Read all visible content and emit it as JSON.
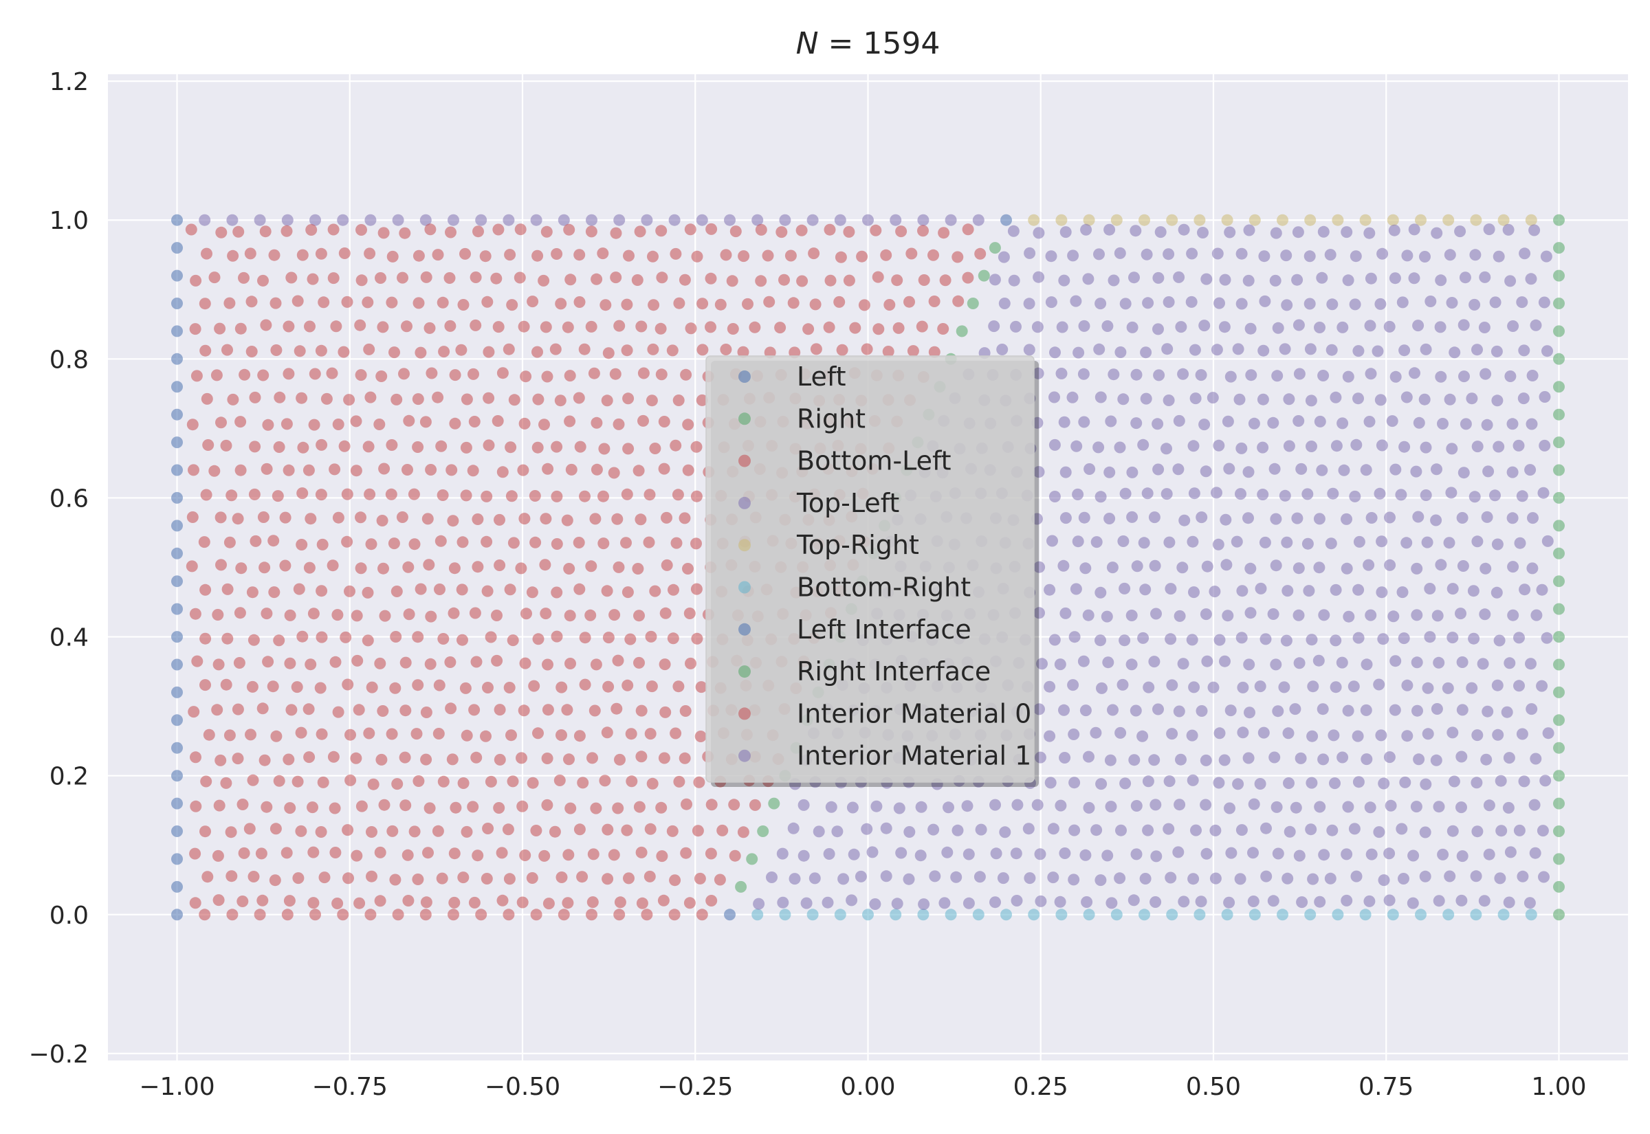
{
  "chart_data": {
    "type": "scatter",
    "title": "N = 1594",
    "xlabel": "",
    "ylabel": "",
    "xlim": [
      -1.1,
      1.1
    ],
    "ylim": [
      -0.21,
      1.21
    ],
    "xticks": [
      "−1.00",
      "−0.75",
      "−0.50",
      "−0.25",
      "0.00",
      "0.25",
      "0.50",
      "0.75",
      "1.00"
    ],
    "xtick_values": [
      -1.0,
      -0.75,
      -0.5,
      -0.25,
      0.0,
      0.25,
      0.5,
      0.75,
      1.0
    ],
    "yticks": [
      "−0.2",
      "0.0",
      "0.2",
      "0.4",
      "0.6",
      "0.8",
      "1.0",
      "1.2"
    ],
    "ytick_values": [
      -0.2,
      0.0,
      0.2,
      0.4,
      0.6,
      0.8,
      1.0,
      1.2
    ],
    "grid": true,
    "legend_position": "center",
    "series": [
      {
        "name": "Left",
        "color": "#4c72b0",
        "shape": "left-boundary: x = -1.0, y from 0.0 to 1.0 step 0.04"
      },
      {
        "name": "Right",
        "color": "#55a868",
        "shape": "right-boundary: x = 1.0, y from 0.0 to 1.0 step 0.04"
      },
      {
        "name": "Bottom-Left",
        "color": "#c44e52",
        "shape": "bottom boundary y = 0.0, x from -0.96 to -0.24"
      },
      {
        "name": "Top-Left",
        "color": "#8172b3",
        "shape": "top boundary y = 1.0, x from -0.96 to 0.16"
      },
      {
        "name": "Top-Right",
        "color": "#ccb974",
        "shape": "top boundary y = 1.0, x from 0.20 to 0.96"
      },
      {
        "name": "Bottom-Right",
        "color": "#64b5cd",
        "shape": "bottom boundary y = 0.0, x from -0.16 to 0.96"
      },
      {
        "name": "Left Interface",
        "color": "#4c72b0",
        "shape": "points (-0.2, 0.0) and (0.2, 1.0)"
      },
      {
        "name": "Right Interface",
        "color": "#55a868",
        "shape": "diagonal interface from (-0.2, 0.0) to (0.2, 1.0)"
      },
      {
        "name": "Interior Material 0",
        "color": "#c44e52",
        "shape": "interior region left of interface"
      },
      {
        "name": "Interior Material 1",
        "color": "#8172b3",
        "shape": "interior region right of interface"
      }
    ]
  }
}
